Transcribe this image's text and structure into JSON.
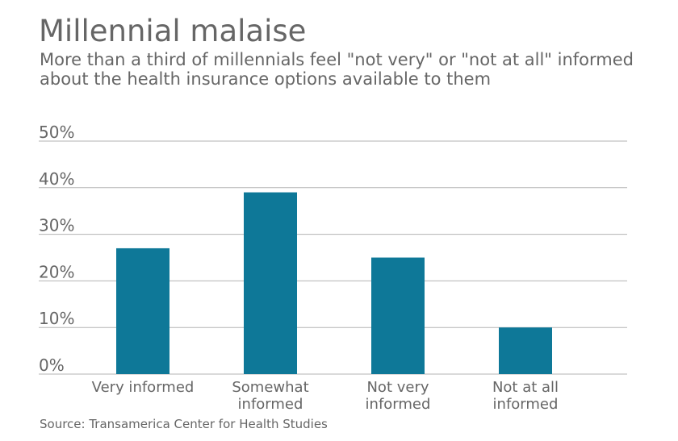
{
  "header": {
    "title": "Millennial malaise",
    "subtitle": "More than a third of millennials feel \"not very\" or \"not at all\" informed about the health insurance options available to them"
  },
  "footer": {
    "source": "Source: Transamerica Center for Health Studies"
  },
  "chart_data": {
    "type": "bar",
    "title": "Millennial malaise",
    "subtitle": "More than a third of millennials feel \"not very\" or \"not at all\" informed about the health insurance options available to them",
    "categories": [
      "Very informed",
      "Somewhat informed",
      "Not very informed",
      "Not at all informed"
    ],
    "category_lines": [
      [
        "Very informed"
      ],
      [
        "Somewhat",
        "informed"
      ],
      [
        "Not very",
        "informed"
      ],
      [
        "Not at all",
        "informed"
      ]
    ],
    "values": [
      27,
      39,
      25,
      10
    ],
    "unit": "%",
    "ylim": [
      0,
      50
    ],
    "yticks": [
      0,
      10,
      20,
      30,
      40,
      50
    ],
    "ytick_labels": [
      "0%",
      "10%",
      "20%",
      "30%",
      "40%",
      "50%"
    ],
    "grid": true,
    "xlabel": "",
    "ylabel": "",
    "colors": {
      "bar": "#0e7898",
      "grid": "#b3b3b3",
      "text": "#666666"
    }
  }
}
